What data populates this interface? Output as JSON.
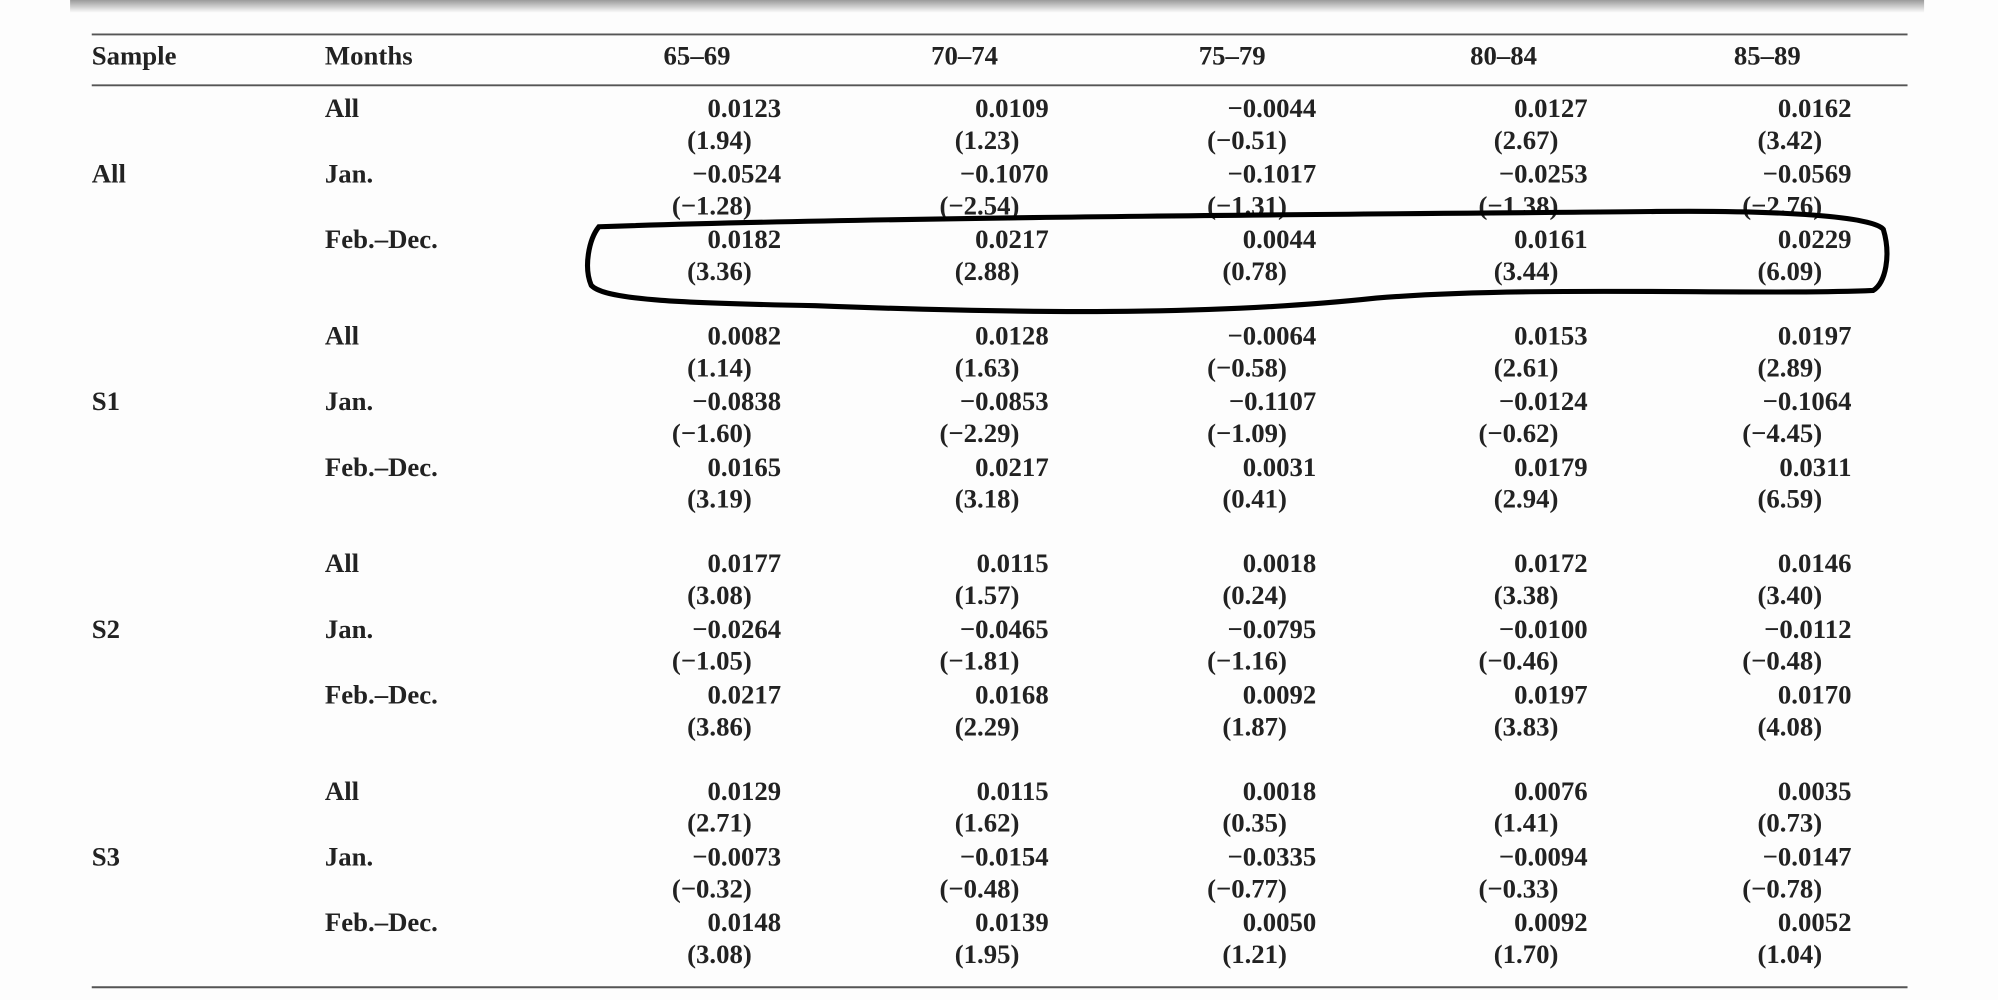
{
  "table": {
    "header": [
      "Sample",
      "Months",
      "65–69",
      "70–74",
      "75–79",
      "80–84",
      "85–89"
    ],
    "groups": [
      {
        "sample": "All",
        "rows": [
          {
            "months": "All",
            "coef": [
              "0.0123",
              "0.0109",
              "−0.0044",
              "0.0127",
              "0.0162"
            ],
            "t": [
              "(1.94)",
              "(1.23)",
              "(−0.51)",
              "(2.67)",
              "(3.42)"
            ]
          },
          {
            "months": "Jan.",
            "coef": [
              "−0.0524",
              "−0.1070",
              "−0.1017",
              "−0.0253",
              "−0.0569"
            ],
            "t": [
              "(−1.28)",
              "(−2.54)",
              "(−1.31)",
              "(−1.38)",
              "(−2.76)"
            ]
          },
          {
            "months": "Feb.–Dec.",
            "coef": [
              "0.0182",
              "0.0217",
              "0.0044",
              "0.0161",
              "0.0229"
            ],
            "t": [
              "(3.36)",
              "(2.88)",
              "(0.78)",
              "(3.44)",
              "(6.09)"
            ]
          }
        ]
      },
      {
        "sample": "S1",
        "rows": [
          {
            "months": "All",
            "coef": [
              "0.0082",
              "0.0128",
              "−0.0064",
              "0.0153",
              "0.0197"
            ],
            "t": [
              "(1.14)",
              "(1.63)",
              "(−0.58)",
              "(2.61)",
              "(2.89)"
            ]
          },
          {
            "months": "Jan.",
            "coef": [
              "−0.0838",
              "−0.0853",
              "−0.1107",
              "−0.0124",
              "−0.1064"
            ],
            "t": [
              "(−1.60)",
              "(−2.29)",
              "(−1.09)",
              "(−0.62)",
              "(−4.45)"
            ]
          },
          {
            "months": "Feb.–Dec.",
            "coef": [
              "0.0165",
              "0.0217",
              "0.0031",
              "0.0179",
              "0.0311"
            ],
            "t": [
              "(3.19)",
              "(3.18)",
              "(0.41)",
              "(2.94)",
              "(6.59)"
            ]
          }
        ]
      },
      {
        "sample": "S2",
        "rows": [
          {
            "months": "All",
            "coef": [
              "0.0177",
              "0.0115",
              "0.0018",
              "0.0172",
              "0.0146"
            ],
            "t": [
              "(3.08)",
              "(1.57)",
              "(0.24)",
              "(3.38)",
              "(3.40)"
            ]
          },
          {
            "months": "Jan.",
            "coef": [
              "−0.0264",
              "−0.0465",
              "−0.0795",
              "−0.0100",
              "−0.0112"
            ],
            "t": [
              "(−1.05)",
              "(−1.81)",
              "(−1.16)",
              "(−0.46)",
              "(−0.48)"
            ]
          },
          {
            "months": "Feb.–Dec.",
            "coef": [
              "0.0217",
              "0.0168",
              "0.0092",
              "0.0197",
              "0.0170"
            ],
            "t": [
              "(3.86)",
              "(2.29)",
              "(1.87)",
              "(3.83)",
              "(4.08)"
            ]
          }
        ]
      },
      {
        "sample": "S3",
        "rows": [
          {
            "months": "All",
            "coef": [
              "0.0129",
              "0.0115",
              "0.0018",
              "0.0076",
              "0.0035"
            ],
            "t": [
              "(2.71)",
              "(1.62)",
              "(0.35)",
              "(1.41)",
              "(0.73)"
            ]
          },
          {
            "months": "Jan.",
            "coef": [
              "−0.0073",
              "−0.0154",
              "−0.0335",
              "−0.0094",
              "−0.0147"
            ],
            "t": [
              "(−0.32)",
              "(−0.48)",
              "(−0.77)",
              "(−0.33)",
              "(−0.78)"
            ]
          },
          {
            "months": "Feb.–Dec.",
            "coef": [
              "0.0148",
              "0.0139",
              "0.0050",
              "0.0092",
              "0.0052"
            ],
            "t": [
              "(3.08)",
              "(1.95)",
              "(1.21)",
              "(1.70)",
              "(1.04)"
            ]
          }
        ]
      }
    ]
  }
}
